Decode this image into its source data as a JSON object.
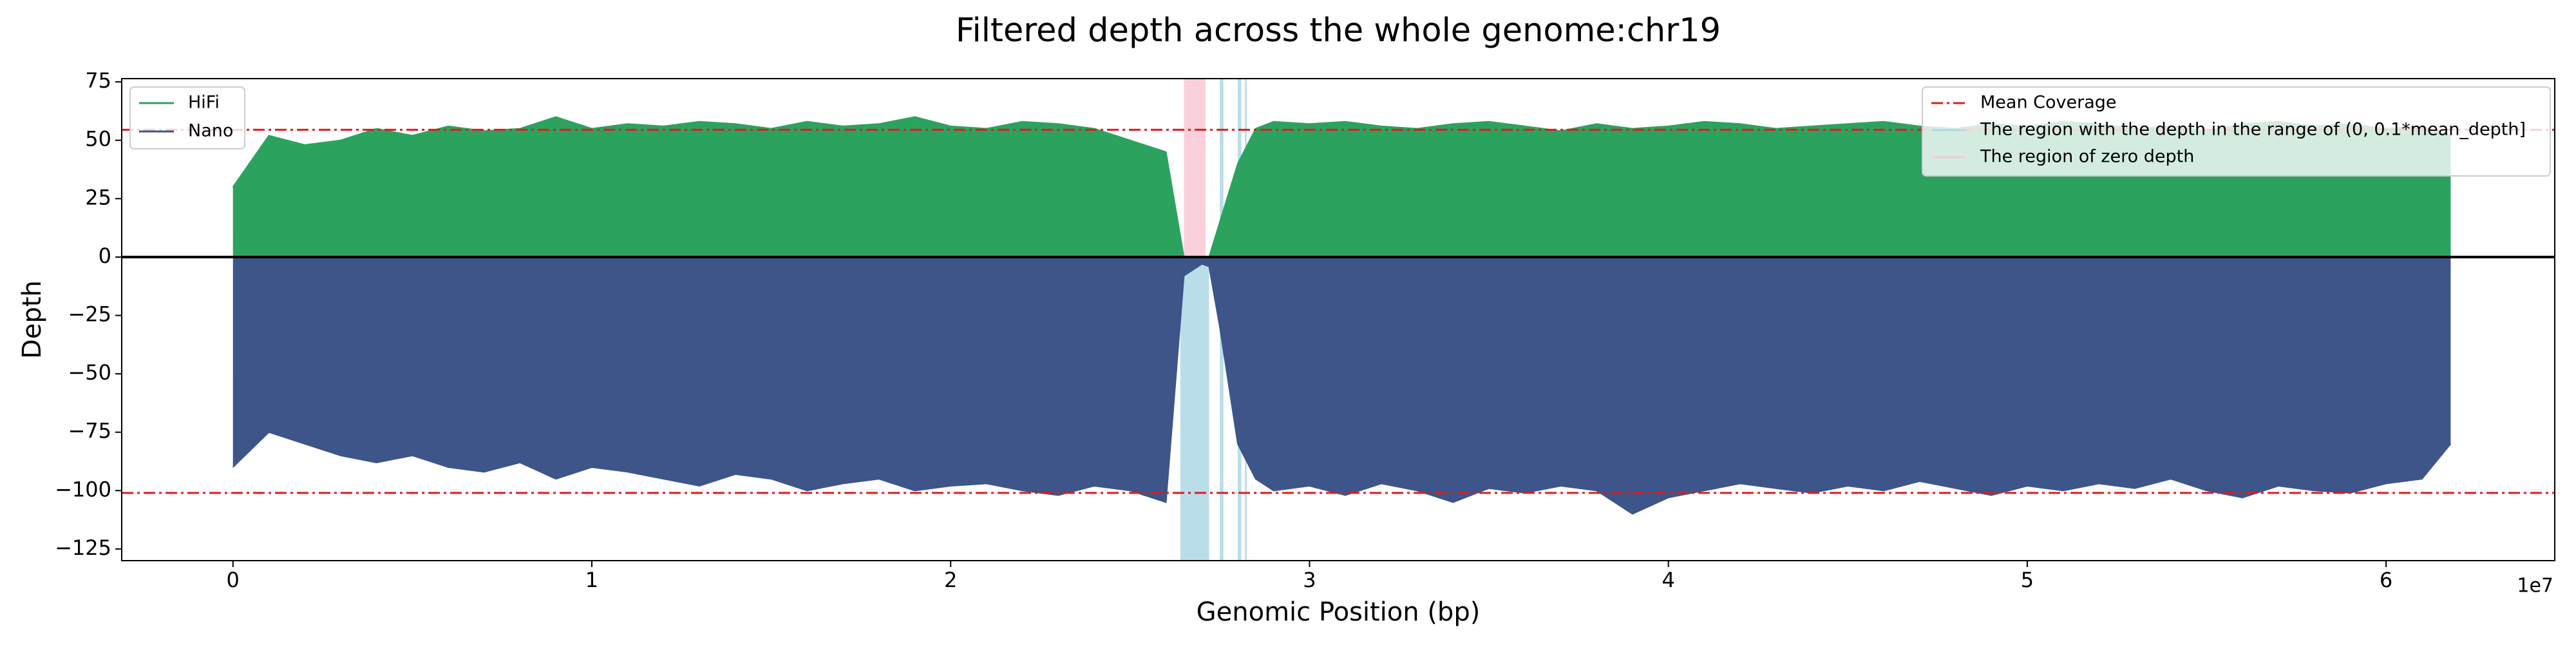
{
  "chart_data": {
    "type": "area",
    "title": "Filtered depth across the whole genome:chr19",
    "x_label": "Genomic Position (bp)",
    "y_label": "Depth",
    "x_offset_label": "1e7",
    "x": [
      0,
      1000000,
      2000000,
      3000000,
      4000000,
      5000000,
      6000000,
      7000000,
      8000000,
      9000000,
      10000000,
      11000000,
      12000000,
      13000000,
      14000000,
      15000000,
      16000000,
      17000000,
      18000000,
      19000000,
      20000000,
      21000000,
      22000000,
      23000000,
      24000000,
      25000000,
      26000000,
      26500000,
      27000000,
      27200000,
      27500000,
      28000000,
      28500000,
      29000000,
      30000000,
      31000000,
      32000000,
      33000000,
      34000000,
      35000000,
      36000000,
      37000000,
      38000000,
      39000000,
      40000000,
      41000000,
      42000000,
      43000000,
      44000000,
      45000000,
      46000000,
      47000000,
      48000000,
      49000000,
      50000000,
      51000000,
      52000000,
      53000000,
      54000000,
      55000000,
      56000000,
      57000000,
      58000000,
      59000000,
      60000000,
      61000000,
      61800000
    ],
    "series": [
      {
        "name": "HiFi",
        "color": "#2ca25f",
        "values": [
          30,
          52,
          48,
          50,
          55,
          52,
          56,
          54,
          55,
          60,
          55,
          57,
          56,
          58,
          57,
          55,
          58,
          56,
          57,
          60,
          56,
          55,
          58,
          57,
          55,
          50,
          45,
          0,
          0,
          0,
          15,
          40,
          55,
          58,
          57,
          58,
          56,
          55,
          57,
          58,
          56,
          54,
          57,
          55,
          56,
          58,
          57,
          55,
          56,
          57,
          58,
          56,
          55,
          57,
          56,
          58,
          57,
          55,
          56,
          54,
          57,
          58,
          56,
          57,
          55,
          56,
          52
        ]
      },
      {
        "name": "Nano",
        "color": "#3d5589",
        "values": [
          -90,
          -75,
          -80,
          -85,
          -88,
          -85,
          -90,
          -92,
          -88,
          -95,
          -90,
          -92,
          -95,
          -98,
          -93,
          -95,
          -100,
          -97,
          -95,
          -100,
          -98,
          -97,
          -100,
          -102,
          -98,
          -100,
          -105,
          -8,
          -3,
          -4,
          -30,
          -80,
          -95,
          -100,
          -98,
          -102,
          -97,
          -100,
          -105,
          -99,
          -101,
          -98,
          -100,
          -110,
          -103,
          -100,
          -97,
          -99,
          -101,
          -98,
          -100,
          -96,
          -99,
          -102,
          -98,
          -100,
          -97,
          -99,
          -95,
          -100,
          -103,
          -98,
          -100,
          -101,
          -97,
          -95,
          -80
        ]
      }
    ],
    "mean_coverage": {
      "name": "Mean Coverage",
      "color": "#e41a1c",
      "values": [
        54.5,
        -101
      ]
    },
    "regions": [
      {
        "name": "The region with the depth in the range of (0, 0.1*mean_depth]",
        "color": "#add8e6",
        "spans": [
          {
            "x": [
              26400000,
              27200000
            ],
            "y": [
              -130,
              0
            ]
          },
          {
            "x": [
              27500000,
              27600000
            ],
            "y": [
              -130,
              76.4
            ]
          },
          {
            "x": [
              28000000,
              28100000
            ],
            "y": [
              -130,
              76.4
            ]
          },
          {
            "x": [
              28200000,
              28250000
            ],
            "y": [
              -130,
              76.4
            ]
          }
        ]
      },
      {
        "name": "The region of zero depth",
        "color": "#f8c8d4",
        "spans": [
          {
            "x": [
              26500000,
              27100000
            ],
            "y": [
              0,
              76.4
            ]
          }
        ]
      }
    ],
    "xlim": [
      -3100000,
      64700000
    ],
    "xticks": [
      0,
      {
        "value": 10000000,
        "label": "1"
      },
      {
        "value": 20000000,
        "label": "2"
      },
      {
        "value": 30000000,
        "label": "3"
      },
      {
        "value": 40000000,
        "label": "4"
      },
      {
        "value": 50000000,
        "label": "5"
      },
      {
        "value": 60000000,
        "label": "6"
      }
    ],
    "ylim": [
      -130,
      76.4
    ],
    "yticks": [
      {
        "value": -125,
        "label": "−125"
      },
      {
        "value": -100,
        "label": "−100"
      },
      {
        "value": -75,
        "label": "−75"
      },
      {
        "value": -50,
        "label": "−50"
      },
      {
        "value": -25,
        "label": "−25"
      },
      0,
      25,
      50,
      75
    ],
    "grid": false
  }
}
